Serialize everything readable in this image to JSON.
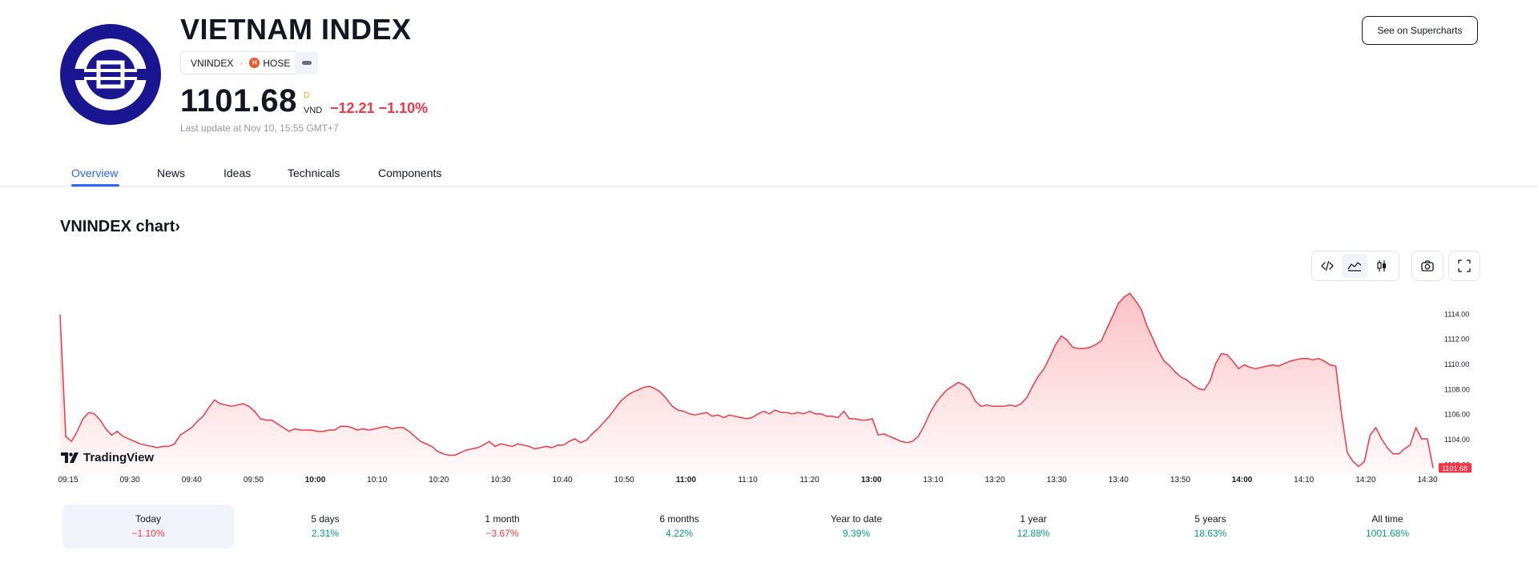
{
  "header": {
    "title": "VIETNAM INDEX",
    "symbol": "VNINDEX",
    "separator": "·",
    "exchange": "HOSE",
    "price": "1101.68",
    "price_marker": "D",
    "currency": "VND",
    "change": "−12.21 −1.10%",
    "last_update": "Last update at Nov 10, 15:55 GMT+7",
    "supercharts_label": "See on Supercharts",
    "logo_icon": "vnindex-logo",
    "exchange_icon": "hose-icon"
  },
  "tabs": [
    {
      "label": "Overview",
      "active": true
    },
    {
      "label": "News"
    },
    {
      "label": "Ideas"
    },
    {
      "label": "Technicals"
    },
    {
      "label": "Components"
    }
  ],
  "chart_section": {
    "title": "VNINDEX chart",
    "arrow": "›",
    "toolbar": [
      "embed-code-icon",
      "area-chart-icon",
      "candles-icon",
      "camera-icon",
      "fullscreen-icon"
    ],
    "brand": "TradingView",
    "price_tag": "1101.68"
  },
  "chart_data": {
    "type": "area",
    "title": "VNINDEX chart",
    "line_color": "#f23645",
    "fill_color": "#f7c3c8",
    "x_ticks": [
      "09:15",
      "09:30",
      "09:40",
      "09:50",
      "10:00",
      "10:10",
      "10:20",
      "10:30",
      "10:40",
      "10:50",
      "11:00",
      "11:10",
      "11:20",
      "13:00",
      "13:10",
      "13:20",
      "13:30",
      "13:40",
      "13:50",
      "14:00",
      "14:10",
      "14:20",
      "14:30"
    ],
    "bold_x_ticks": [
      "10:00",
      "11:00",
      "13:00",
      "14:00"
    ],
    "y_ticks": [
      "1114.00",
      "1112.00",
      "1110.00",
      "1108.00",
      "1106.00",
      "1104.00",
      "1102.00"
    ],
    "ylim": [
      1101.0,
      1116.0
    ],
    "last_value": 1101.68,
    "values": [
      1113.9,
      1104.2,
      1103.8,
      1104.6,
      1105.6,
      1106.1,
      1106.0,
      1105.5,
      1104.8,
      1104.3,
      1104.6,
      1104.2,
      1104.0,
      1103.8,
      1103.6,
      1103.5,
      1103.4,
      1103.3,
      1103.4,
      1103.4,
      1103.6,
      1104.3,
      1104.6,
      1104.9,
      1105.4,
      1105.8,
      1106.5,
      1107.1,
      1106.8,
      1106.7,
      1106.6,
      1106.7,
      1106.8,
      1106.6,
      1106.2,
      1105.6,
      1105.5,
      1105.5,
      1105.2,
      1104.9,
      1104.6,
      1104.8,
      1104.7,
      1104.7,
      1104.7,
      1104.6,
      1104.6,
      1104.7,
      1104.7,
      1105.0,
      1105.0,
      1104.9,
      1104.7,
      1104.8,
      1104.7,
      1104.8,
      1104.9,
      1105.0,
      1104.8,
      1104.9,
      1104.9,
      1104.6,
      1104.2,
      1103.8,
      1103.6,
      1103.4,
      1103.0,
      1102.8,
      1102.7,
      1102.7,
      1102.9,
      1103.1,
      1103.2,
      1103.3,
      1103.5,
      1103.8,
      1103.4,
      1103.6,
      1103.5,
      1103.4,
      1103.6,
      1103.5,
      1103.4,
      1103.2,
      1103.3,
      1103.4,
      1103.3,
      1103.5,
      1103.5,
      1103.8,
      1104.0,
      1103.7,
      1103.9,
      1104.4,
      1104.8,
      1105.3,
      1105.8,
      1106.4,
      1107.0,
      1107.4,
      1107.7,
      1107.9,
      1108.1,
      1108.2,
      1108.0,
      1107.7,
      1107.2,
      1106.6,
      1106.3,
      1106.2,
      1106.0,
      1105.9,
      1106.0,
      1106.1,
      1105.8,
      1105.9,
      1105.7,
      1105.9,
      1105.8,
      1105.7,
      1105.6,
      1105.7,
      1106.0,
      1106.2,
      1106.0,
      1106.3,
      1106.1,
      1106.1,
      1106.0,
      1106.1,
      1106.0,
      1106.2,
      1106.0,
      1106.0,
      1105.8,
      1105.8,
      1105.7,
      1106.2,
      1105.6,
      1105.6,
      1105.5,
      1105.5,
      1105.6,
      1104.3,
      1104.4,
      1104.2,
      1104.0,
      1103.8,
      1103.7,
      1103.8,
      1104.2,
      1105.0,
      1106.0,
      1106.8,
      1107.4,
      1107.9,
      1108.2,
      1108.5,
      1108.3,
      1107.9,
      1107.0,
      1106.6,
      1106.7,
      1106.6,
      1106.6,
      1106.6,
      1106.7,
      1106.6,
      1106.8,
      1107.3,
      1108.2,
      1109.0,
      1109.6,
      1110.5,
      1111.5,
      1112.2,
      1111.9,
      1111.3,
      1111.2,
      1111.2,
      1111.3,
      1111.5,
      1111.8,
      1112.8,
      1113.8,
      1114.8,
      1115.3,
      1115.6,
      1115.0,
      1114.3,
      1113.0,
      1112.0,
      1111.0,
      1110.2,
      1109.8,
      1109.3,
      1108.9,
      1108.7,
      1108.3,
      1108.0,
      1107.9,
      1108.6,
      1110.0,
      1110.8,
      1110.7,
      1110.2,
      1109.6,
      1109.9,
      1109.7,
      1109.6,
      1109.7,
      1109.8,
      1109.9,
      1109.8,
      1110.0,
      1110.2,
      1110.3,
      1110.4,
      1110.4,
      1110.3,
      1110.4,
      1110.2,
      1109.9,
      1109.8,
      1106.0,
      1102.9,
      1102.2,
      1101.8,
      1102.2,
      1104.3,
      1104.9,
      1104.0,
      1103.3,
      1102.8,
      1102.8,
      1103.2,
      1103.5,
      1104.9,
      1104.0,
      1104.0,
      1101.68
    ]
  },
  "periods": [
    {
      "label": "Today",
      "value": "−1.10%",
      "sign": "neg",
      "active": true
    },
    {
      "label": "5 days",
      "value": "2.31%",
      "sign": "pos"
    },
    {
      "label": "1 month",
      "value": "−3.67%",
      "sign": "neg"
    },
    {
      "label": "6 months",
      "value": "4.22%",
      "sign": "pos"
    },
    {
      "label": "Year to date",
      "value": "9.39%",
      "sign": "pos"
    },
    {
      "label": "1 year",
      "value": "12.88%",
      "sign": "pos"
    },
    {
      "label": "5 years",
      "value": "18.63%",
      "sign": "pos"
    },
    {
      "label": "All time",
      "value": "1001.68%",
      "sign": "pos"
    }
  ]
}
